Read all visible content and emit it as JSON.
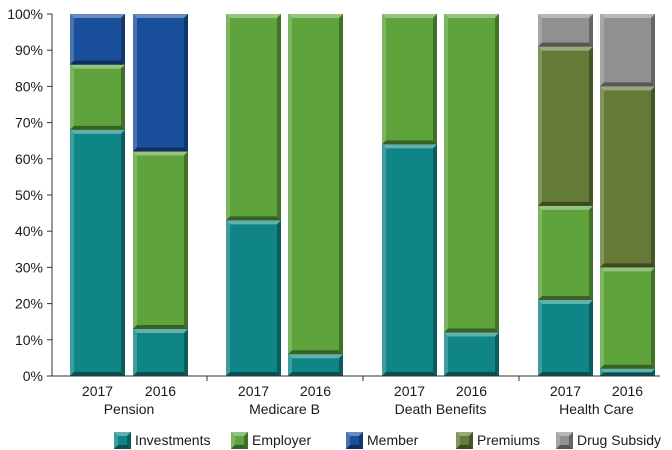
{
  "chart_data": {
    "type": "bar",
    "stacked": true,
    "percent": true,
    "ylim": [
      0,
      100
    ],
    "yticks": [
      "0%",
      "10%",
      "20%",
      "30%",
      "40%",
      "50%",
      "60%",
      "70%",
      "80%",
      "90%",
      "100%"
    ],
    "grid": false,
    "legend_position": "bottom",
    "groups": [
      {
        "name": "Pension",
        "bars": [
          "2017",
          "2016"
        ]
      },
      {
        "name": "Medicare B",
        "bars": [
          "2017",
          "2016"
        ]
      },
      {
        "name": "Death Benefits",
        "bars": [
          "2017",
          "2016"
        ]
      },
      {
        "name": "Health Care",
        "bars": [
          "2017",
          "2016"
        ]
      }
    ],
    "series": [
      {
        "name": "Investments",
        "color": "#0f8585",
        "values": [
          68,
          13,
          43,
          6,
          64,
          12,
          21,
          2
        ]
      },
      {
        "name": "Employer",
        "color": "#5ea33c",
        "values": [
          18,
          49,
          57,
          94,
          36,
          88,
          26,
          28
        ]
      },
      {
        "name": "Member",
        "color": "#1a4f9c",
        "values": [
          14,
          38,
          0,
          0,
          0,
          0,
          0,
          0
        ]
      },
      {
        "name": "Premiums",
        "color": "#647a37",
        "values": [
          0,
          0,
          0,
          0,
          0,
          0,
          44,
          50
        ]
      },
      {
        "name": "Drug Subsidy",
        "color": "#909090",
        "values": [
          0,
          0,
          0,
          0,
          0,
          0,
          9,
          20
        ]
      }
    ]
  }
}
